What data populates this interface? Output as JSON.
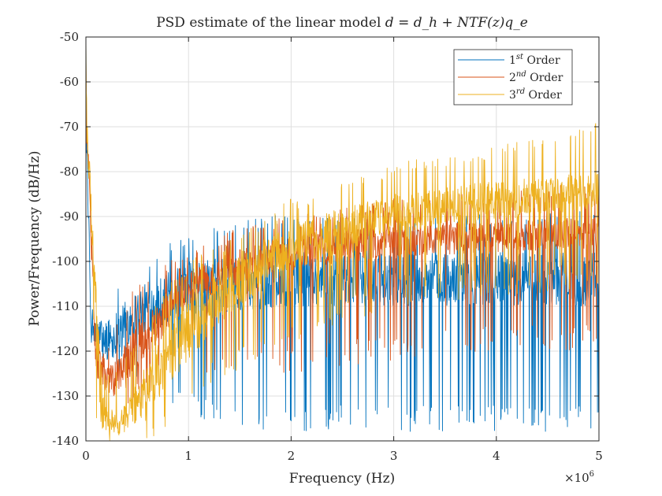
{
  "chart_data": {
    "type": "line",
    "title_prefix": "PSD estimate of the linear model ",
    "title_math": "d = d_h + NTF(z)q_e",
    "xlabel": "Frequency (Hz)",
    "ylabel": "Power/Frequency (dB/Hz)",
    "x_multiplier": "×10",
    "x_multiplier_exp": "6",
    "xlim": [
      0,
      5
    ],
    "ylim": [
      -140,
      -50
    ],
    "x_ticks": [
      0,
      1,
      2,
      3,
      4,
      5
    ],
    "y_ticks": [
      -140,
      -130,
      -120,
      -110,
      -100,
      -90,
      -80,
      -70,
      -60,
      -50
    ],
    "grid": true,
    "legend_position": "top-right",
    "series": [
      {
        "name_base": "1",
        "name_sup": "st",
        "name_rest": " Order",
        "color": "#0072BD",
        "envelope_upper": [
          [
            0,
            -50
          ],
          [
            0.03,
            -105
          ],
          [
            0.1,
            -112
          ],
          [
            0.2,
            -108
          ],
          [
            0.4,
            -103
          ],
          [
            0.6,
            -100
          ],
          [
            0.8,
            -96
          ],
          [
            1.0,
            -94
          ],
          [
            1.2,
            -92
          ],
          [
            1.5,
            -91
          ],
          [
            2.0,
            -89
          ],
          [
            2.5,
            -90
          ],
          [
            3.0,
            -90
          ],
          [
            3.5,
            -89
          ],
          [
            4.0,
            -89
          ],
          [
            4.5,
            -89
          ],
          [
            5.0,
            -88
          ]
        ],
        "envelope_lower": [
          [
            0,
            -60
          ],
          [
            0.05,
            -120
          ],
          [
            0.1,
            -125
          ],
          [
            0.2,
            -125
          ],
          [
            0.4,
            -125
          ],
          [
            0.6,
            -128
          ],
          [
            0.8,
            -132
          ],
          [
            1.0,
            -135
          ],
          [
            1.5,
            -138
          ],
          [
            2.0,
            -138
          ],
          [
            3.0,
            -138
          ],
          [
            4.0,
            -138
          ],
          [
            5.0,
            -138
          ]
        ],
        "core_upper": [
          [
            0,
            -60
          ],
          [
            0.05,
            -112
          ],
          [
            0.2,
            -113
          ],
          [
            0.5,
            -106
          ],
          [
            1.0,
            -100
          ],
          [
            1.5,
            -99
          ],
          [
            2.0,
            -98
          ],
          [
            3.0,
            -98
          ],
          [
            4.0,
            -98
          ],
          [
            5.0,
            -98
          ]
        ],
        "core_lower": [
          [
            0,
            -70
          ],
          [
            0.05,
            -118
          ],
          [
            0.2,
            -122
          ],
          [
            0.5,
            -117
          ],
          [
            1.0,
            -112
          ],
          [
            1.5,
            -111
          ],
          [
            2.0,
            -110
          ],
          [
            3.0,
            -110
          ],
          [
            4.0,
            -110
          ],
          [
            5.0,
            -110
          ]
        ]
      },
      {
        "name_base": "2",
        "name_sup": "nd",
        "name_rest": " Order",
        "color": "#D95319",
        "envelope_upper": [
          [
            0,
            -55
          ],
          [
            0.05,
            -112
          ],
          [
            0.2,
            -118
          ],
          [
            0.4,
            -108
          ],
          [
            0.6,
            -103
          ],
          [
            0.8,
            -100
          ],
          [
            1.0,
            -98
          ],
          [
            1.2,
            -96
          ],
          [
            1.5,
            -92
          ],
          [
            2.0,
            -90
          ],
          [
            2.5,
            -88
          ],
          [
            3.0,
            -86
          ],
          [
            3.5,
            -85
          ],
          [
            4.0,
            -84
          ],
          [
            4.5,
            -83
          ],
          [
            5.0,
            -83
          ]
        ],
        "envelope_lower": [
          [
            0,
            -65
          ],
          [
            0.1,
            -128
          ],
          [
            0.2,
            -134
          ],
          [
            0.4,
            -134
          ],
          [
            0.6,
            -132
          ],
          [
            0.8,
            -130
          ],
          [
            1.0,
            -128
          ],
          [
            1.5,
            -125
          ],
          [
            2.0,
            -125
          ],
          [
            3.0,
            -122
          ],
          [
            4.0,
            -120
          ],
          [
            5.0,
            -120
          ]
        ],
        "core_upper": [
          [
            0,
            -60
          ],
          [
            0.1,
            -118
          ],
          [
            0.25,
            -123
          ],
          [
            0.5,
            -114
          ],
          [
            1.0,
            -102
          ],
          [
            1.5,
            -97
          ],
          [
            2.0,
            -94
          ],
          [
            3.0,
            -92
          ],
          [
            4.0,
            -91
          ],
          [
            5.0,
            -90
          ]
        ],
        "core_lower": [
          [
            0,
            -70
          ],
          [
            0.1,
            -126
          ],
          [
            0.25,
            -131
          ],
          [
            0.5,
            -124
          ],
          [
            1.0,
            -110
          ],
          [
            1.5,
            -105
          ],
          [
            2.0,
            -102
          ],
          [
            3.0,
            -99
          ],
          [
            4.0,
            -98
          ],
          [
            5.0,
            -97
          ]
        ]
      },
      {
        "name_base": "3",
        "name_sup": "rd",
        "name_rest": " Order",
        "color": "#EDB120",
        "envelope_upper": [
          [
            0,
            -50
          ],
          [
            0.05,
            -115
          ],
          [
            0.2,
            -125
          ],
          [
            0.4,
            -120
          ],
          [
            0.6,
            -112
          ],
          [
            0.8,
            -105
          ],
          [
            1.0,
            -100
          ],
          [
            1.5,
            -94
          ],
          [
            2.0,
            -86
          ],
          [
            2.5,
            -82
          ],
          [
            3.0,
            -78
          ],
          [
            3.5,
            -76
          ],
          [
            4.0,
            -74
          ],
          [
            4.5,
            -72
          ],
          [
            5.0,
            -69
          ]
        ],
        "envelope_lower": [
          [
            0,
            -70
          ],
          [
            0.1,
            -135
          ],
          [
            0.2,
            -140
          ],
          [
            0.5,
            -140
          ],
          [
            0.8,
            -138
          ],
          [
            1.0,
            -132
          ],
          [
            1.5,
            -124
          ],
          [
            2.0,
            -118
          ],
          [
            2.5,
            -114
          ],
          [
            3.0,
            -110
          ],
          [
            4.0,
            -108
          ],
          [
            5.0,
            -106
          ]
        ],
        "core_upper": [
          [
            0,
            -60
          ],
          [
            0.15,
            -128
          ],
          [
            0.3,
            -135
          ],
          [
            0.6,
            -122
          ],
          [
            1.0,
            -108
          ],
          [
            1.5,
            -98
          ],
          [
            2.0,
            -92
          ],
          [
            2.5,
            -88
          ],
          [
            3.0,
            -85
          ],
          [
            4.0,
            -82
          ],
          [
            5.0,
            -80
          ]
        ],
        "core_lower": [
          [
            0,
            -70
          ],
          [
            0.15,
            -138
          ],
          [
            0.3,
            -140
          ],
          [
            0.6,
            -134
          ],
          [
            1.0,
            -122
          ],
          [
            1.5,
            -110
          ],
          [
            2.0,
            -102
          ],
          [
            2.5,
            -98
          ],
          [
            3.0,
            -94
          ],
          [
            4.0,
            -91
          ],
          [
            5.0,
            -88
          ]
        ]
      }
    ]
  }
}
